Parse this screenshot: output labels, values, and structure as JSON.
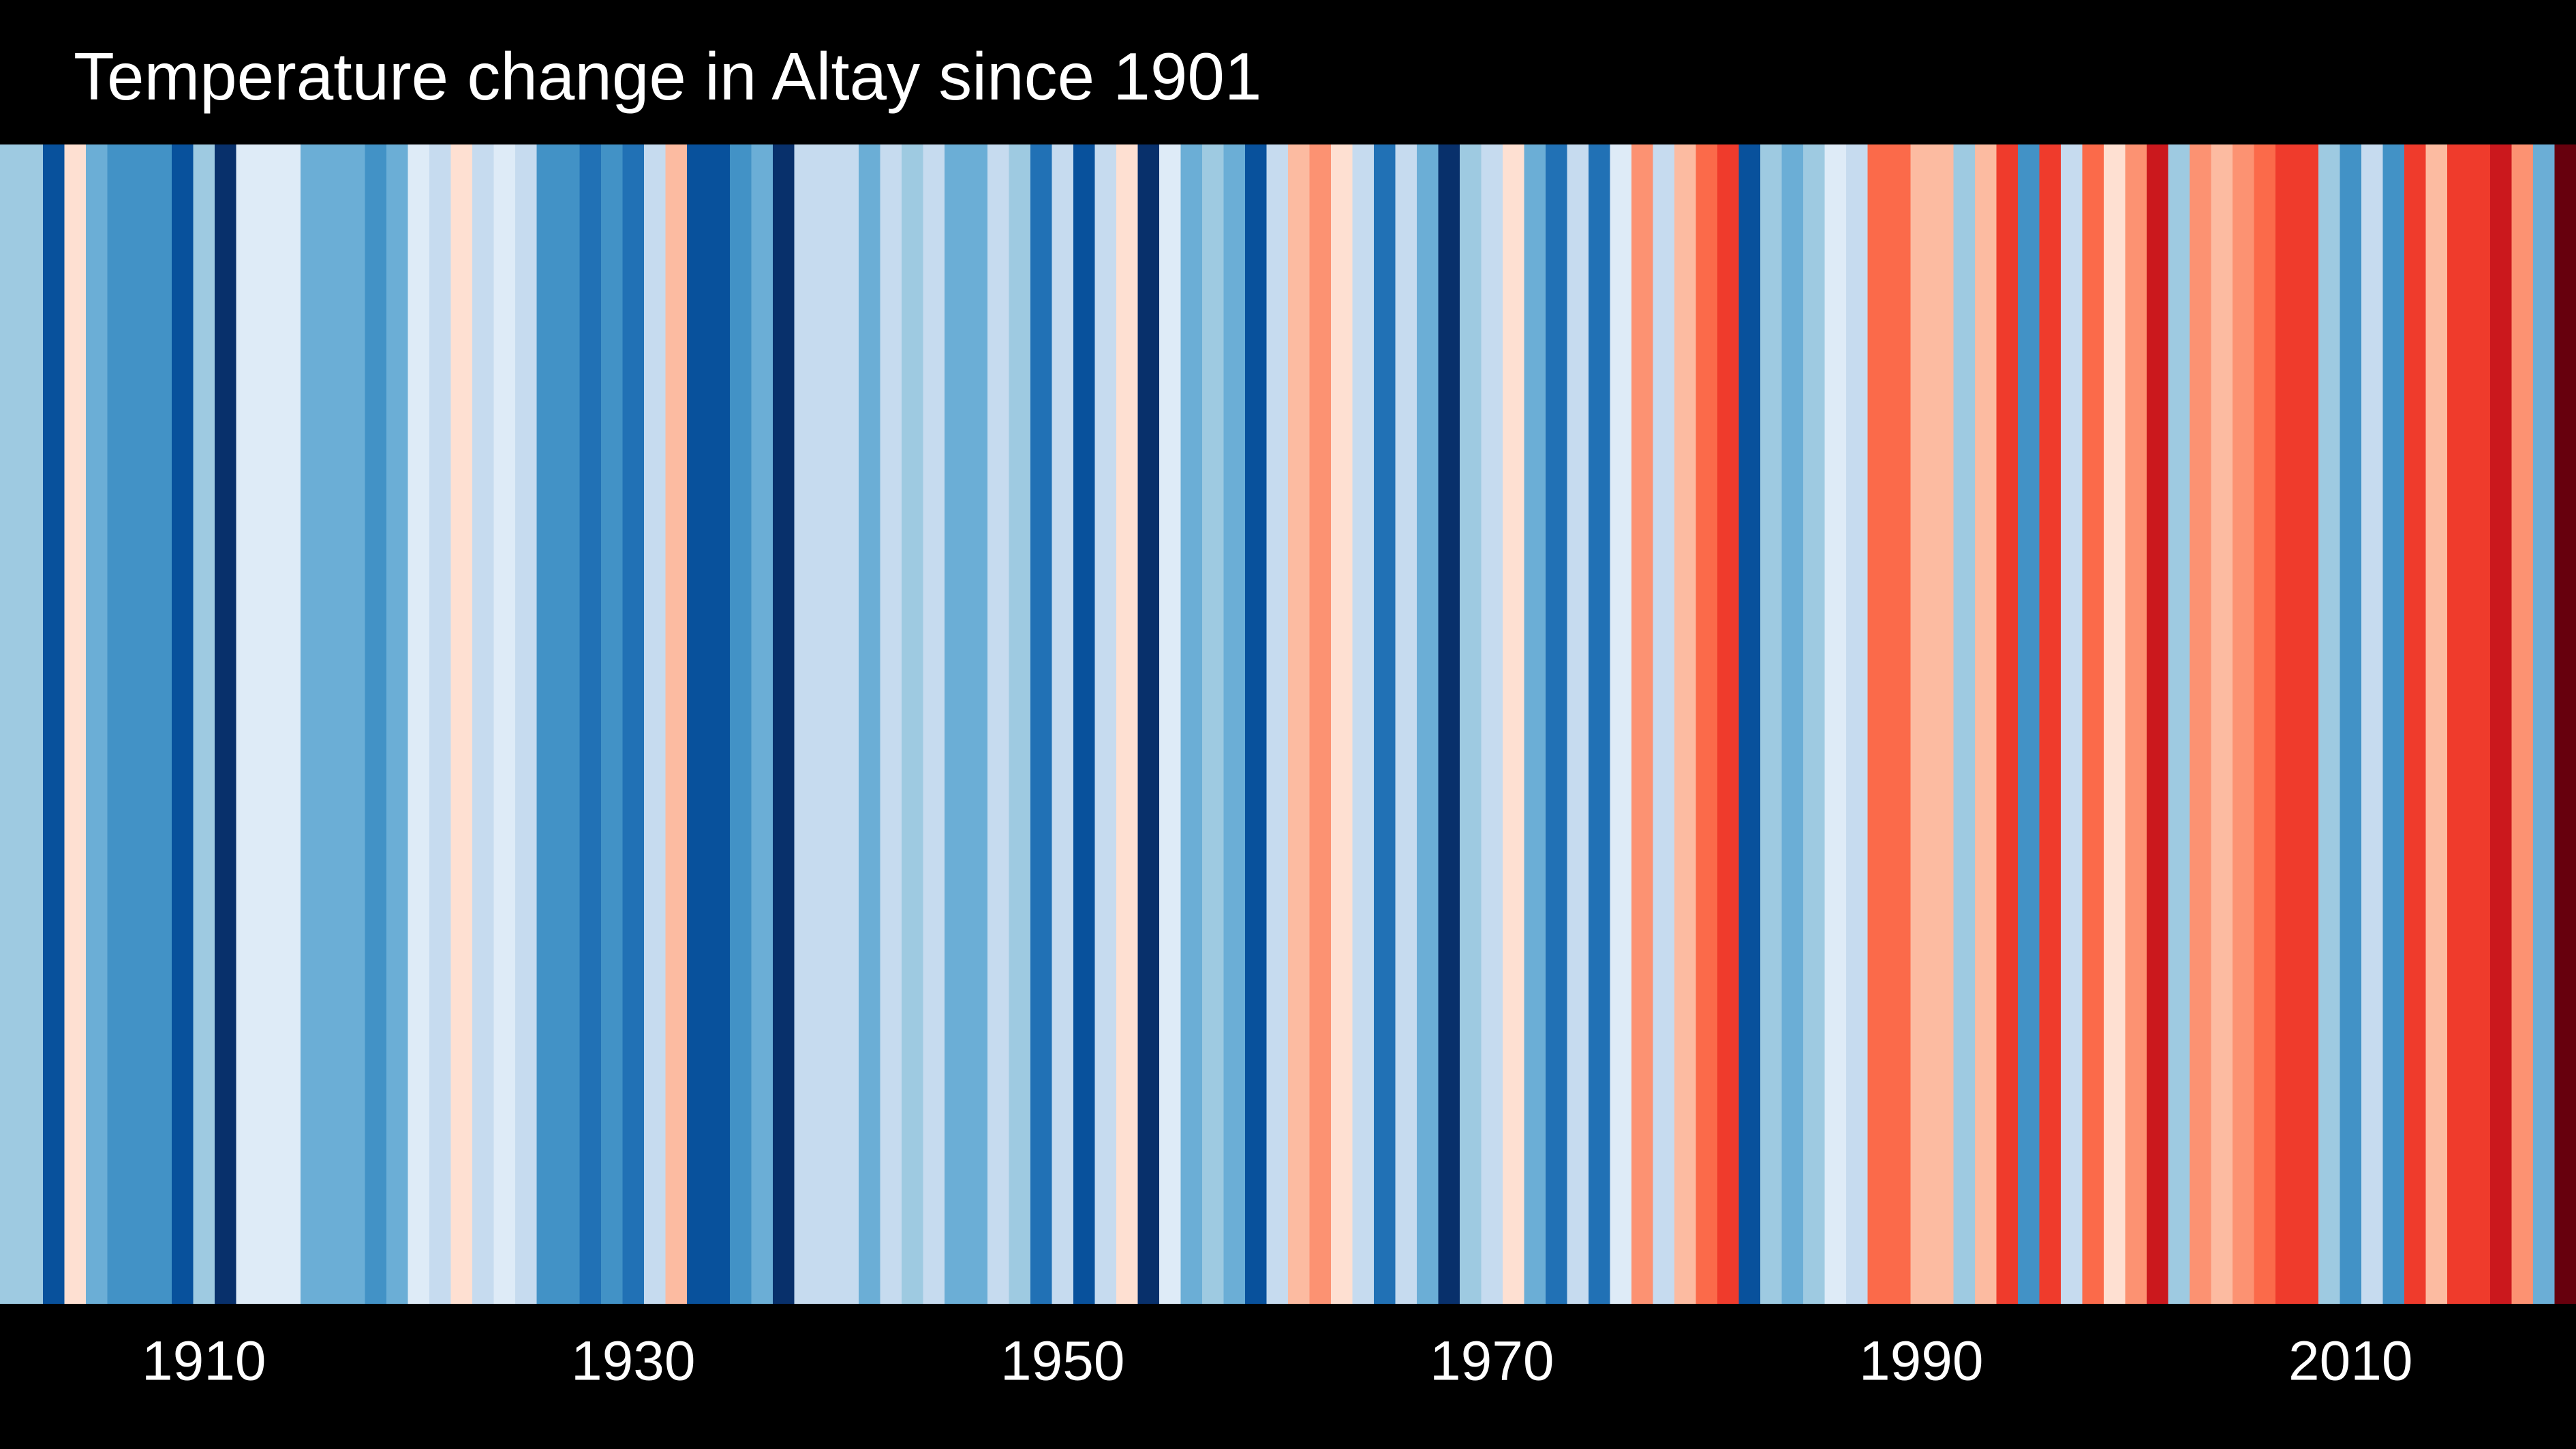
{
  "chart_data": {
    "type": "heatmap",
    "title": "Temperature change in Altay since 1901",
    "xlabel": "",
    "ylabel": "",
    "x_start": 1901,
    "x_end": 2020,
    "x_ticks": [
      1910,
      1930,
      1950,
      1970,
      1990,
      2010
    ],
    "x_tick_labels": [
      "1910",
      "1930",
      "1950",
      "1970",
      "1990",
      "2010"
    ],
    "grid": false,
    "legend": "none",
    "color_scale": {
      "levels": [
        -4,
        -3,
        -2,
        -1,
        0,
        1,
        2,
        3,
        4
      ],
      "colors": [
        "#08306b",
        "#08519c",
        "#2171b5",
        "#4292c6",
        "#6baed6",
        "#9ecae1",
        "#c6dbef",
        "#deebf7",
        "#fee0d2",
        "#fcbba1",
        "#fc9272",
        "#fb6a4a",
        "#ef3b2c",
        "#cb181d",
        "#67000d"
      ]
    },
    "series": [
      {
        "years": [
          1901,
          1902,
          1903,
          1904,
          1905,
          1906,
          1907,
          1908,
          1909,
          1910,
          1911,
          1912,
          1913,
          1914,
          1915,
          1916,
          1917,
          1918,
          1919,
          1920,
          1921,
          1922,
          1923,
          1924,
          1925,
          1926,
          1927,
          1928,
          1929,
          1930,
          1931,
          1932,
          1933,
          1934,
          1935,
          1936,
          1937,
          1938,
          1939,
          1940,
          1941,
          1942,
          1943,
          1944,
          1945,
          1946,
          1947,
          1948,
          1949,
          1950,
          1951,
          1952,
          1953,
          1954,
          1955,
          1956,
          1957,
          1958,
          1959,
          1960,
          1961,
          1962,
          1963,
          1964,
          1965,
          1966,
          1967,
          1968,
          1969,
          1970,
          1971,
          1972,
          1973,
          1974,
          1975,
          1976,
          1977,
          1978,
          1979,
          1980,
          1981,
          1982,
          1983,
          1984,
          1985,
          1986,
          1987,
          1988,
          1989,
          1990,
          1991,
          1992,
          1993,
          1994,
          1995,
          1996,
          1997,
          1998,
          1999,
          2000,
          2001,
          2002,
          2003,
          2004,
          2005,
          2006,
          2007,
          2008,
          2009,
          2010,
          2011,
          2012,
          2013,
          2014,
          2015,
          2016,
          2017,
          2018,
          2019,
          2020
        ],
        "values": [
          -0.9,
          -0.9,
          -3.4,
          0.5,
          -1.5,
          -2.4,
          -2.4,
          -2.4,
          -3.4,
          -0.9,
          -3.9,
          0.1,
          0.1,
          0.1,
          -1.9,
          -1.9,
          -1.9,
          -2.4,
          -1.9,
          0.1,
          -0.6,
          0.5,
          -0.6,
          0.1,
          -0.6,
          -2.4,
          -2.4,
          -2.9,
          -2.4,
          -2.9,
          -0.6,
          1.2,
          -3.4,
          -3.4,
          -2.4,
          -1.9,
          -3.9,
          -0.6,
          -0.6,
          -0.6,
          -1.9,
          -0.6,
          -1.4,
          -0.3,
          -1.9,
          -1.9,
          -0.6,
          -1.4,
          -2.9,
          -0.6,
          -3.4,
          -0.6,
          0.5,
          -3.9,
          0.1,
          -1.9,
          -0.9,
          -1.9,
          -3.4,
          -0.6,
          1.3,
          1.8,
          0.5,
          -0.6,
          -2.9,
          -0.3,
          -1.9,
          -3.9,
          -0.9,
          -0.3,
          0.5,
          -1.9,
          -2.9,
          -0.3,
          -2.9,
          0.1,
          1.8,
          -0.6,
          1.2,
          2.2,
          3.0,
          -3.4,
          -1.4,
          -1.9,
          -0.9,
          0.1,
          -0.6,
          2.2,
          2.2,
          1.2,
          1.2,
          -0.9,
          1.2,
          2.6,
          -2.4,
          3.0,
          -0.3,
          2.2,
          0.5,
          1.8,
          3.2,
          -0.9,
          1.8,
          0.9,
          1.8,
          2.2,
          3.0,
          3.0,
          -0.9,
          -2.4,
          -0.3,
          -2.4,
          2.6,
          1.2,
          3.0,
          2.6,
          3.2,
          1.8,
          -1.9,
          4.0
        ]
      }
    ]
  }
}
